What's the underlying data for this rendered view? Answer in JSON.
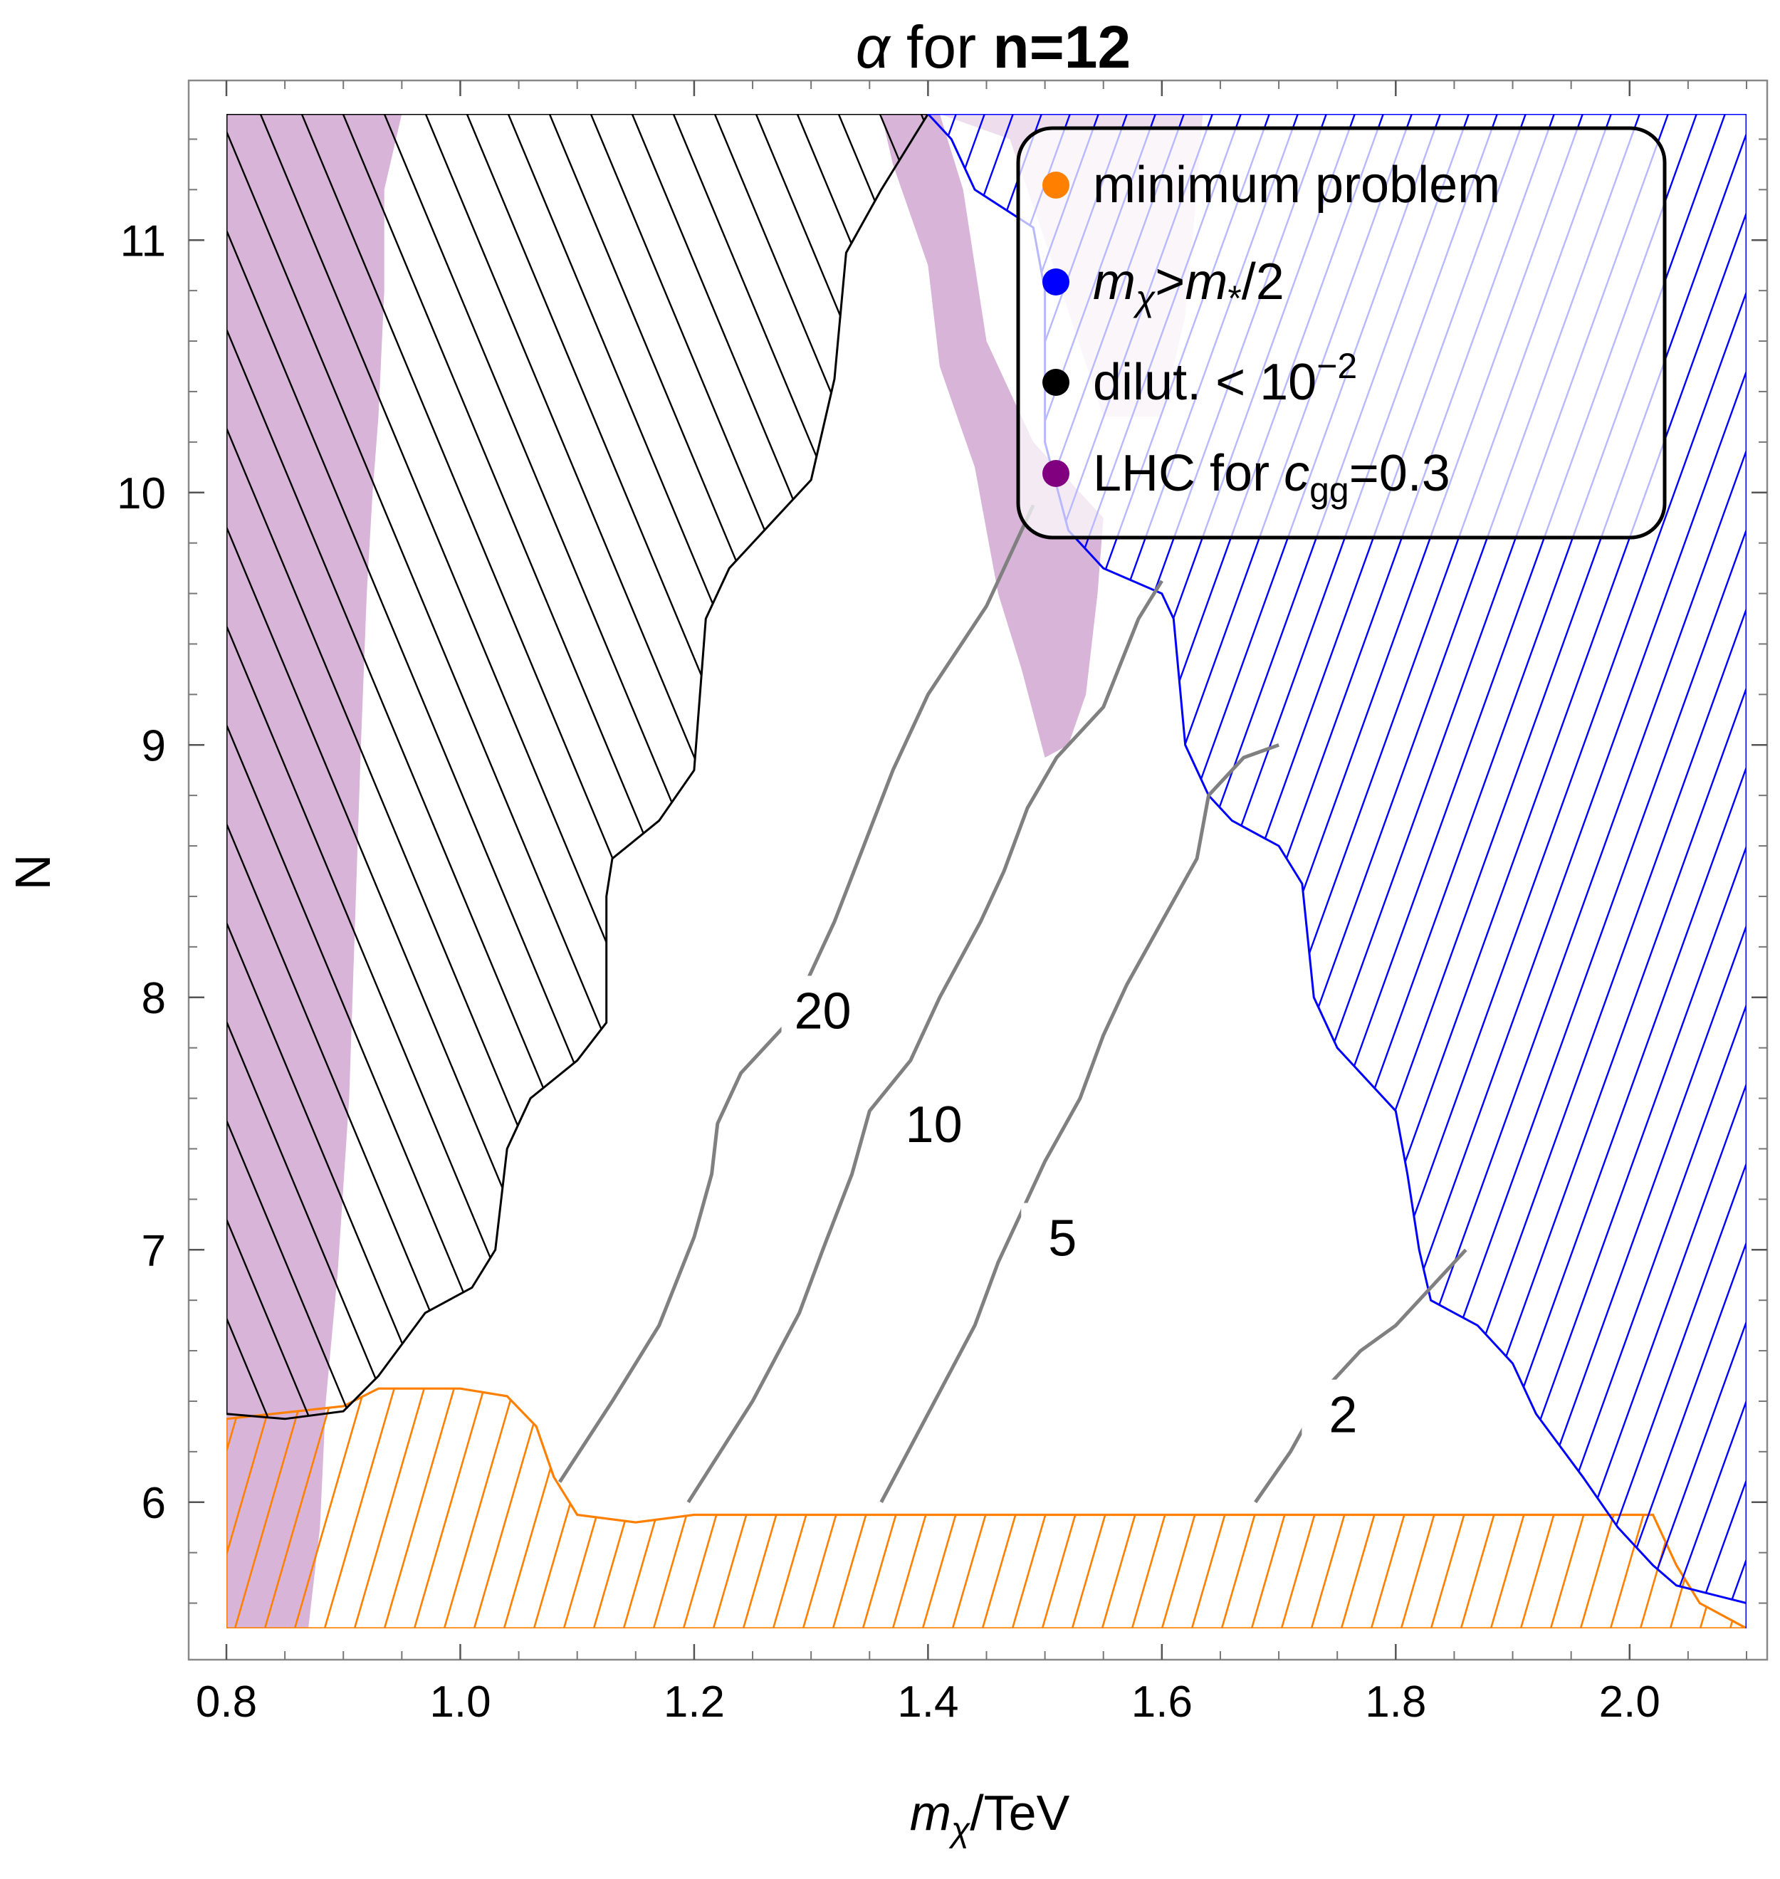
{
  "chart_data": {
    "type": "contour",
    "title": {
      "prefix": "α",
      "middle": " for ",
      "bold": "n=12"
    },
    "xlabel": {
      "var": "m",
      "sub": "χ",
      "unit": "/TeV"
    },
    "ylabel": "N",
    "xlim": [
      0.8,
      2.1
    ],
    "ylim": [
      5.5,
      11.5
    ],
    "x_ticks": [
      0.8,
      1.0,
      1.2,
      1.4,
      1.6,
      1.8,
      2.0
    ],
    "x_tick_labels": [
      "0.8",
      "1.0",
      "1.2",
      "1.4",
      "1.6",
      "1.8",
      "2.0"
    ],
    "y_ticks": [
      6,
      7,
      8,
      9,
      10,
      11
    ],
    "y_tick_labels": [
      "6",
      "7",
      "8",
      "9",
      "10",
      "11"
    ],
    "legend": {
      "position": "top-right",
      "items": [
        {
          "key": "minimum",
          "color": "#ff8000",
          "text": "minimum problem"
        },
        {
          "key": "mchi",
          "color": "#0000ff",
          "text_parts": [
            "m",
            "χ",
            ">",
            "m",
            "*",
            "/2"
          ]
        },
        {
          "key": "dilut",
          "color": "#000000",
          "text": "dilut. < 10",
          "sup": "−2"
        },
        {
          "key": "lhc",
          "color": "#800080",
          "text_pre": "LHC for ",
          "var": "c",
          "sub": "gg",
          "text_post": "=0.3"
        }
      ]
    },
    "regions": {
      "lhc": {
        "color": "#d8b4d8",
        "left_band": [
          [
            0.8,
            5.5
          ],
          [
            0.87,
            5.5
          ],
          [
            0.88,
            5.9
          ],
          [
            0.885,
            6.4
          ],
          [
            0.895,
            6.9
          ],
          [
            0.905,
            7.6
          ],
          [
            0.91,
            8.3
          ],
          [
            0.915,
            9.0
          ],
          [
            0.92,
            9.6
          ],
          [
            0.925,
            10.0
          ],
          [
            0.93,
            10.3
          ],
          [
            0.935,
            10.8
          ],
          [
            0.935,
            11.2
          ],
          [
            0.95,
            11.5
          ],
          [
            0.8,
            11.5
          ]
        ],
        "central_band": [
          [
            1.41,
            11.5
          ],
          [
            1.47,
            11.4
          ],
          [
            1.5,
            11.0
          ],
          [
            1.55,
            10.3
          ],
          [
            1.6,
            10.3
          ],
          [
            1.62,
            10.7
          ],
          [
            1.63,
            11.2
          ],
          [
            1.635,
            11.5
          ]
        ],
        "central_spike": [
          [
            1.36,
            11.5
          ],
          [
            1.41,
            11.5
          ],
          [
            1.43,
            11.2
          ],
          [
            1.45,
            10.6
          ],
          [
            1.49,
            10.2
          ],
          [
            1.55,
            9.9
          ],
          [
            1.545,
            9.6
          ],
          [
            1.535,
            9.2
          ],
          [
            1.52,
            9.0
          ],
          [
            1.5,
            8.95
          ],
          [
            1.48,
            9.3
          ],
          [
            1.46,
            9.6
          ],
          [
            1.44,
            10.1
          ],
          [
            1.41,
            10.5
          ],
          [
            1.4,
            10.9
          ],
          [
            1.37,
            11.3
          ]
        ]
      },
      "dilution": {
        "color": "#000000",
        "boundary": [
          [
            0.8,
            6.35
          ],
          [
            0.85,
            6.33
          ],
          [
            0.9,
            6.36
          ],
          [
            0.93,
            6.5
          ],
          [
            0.97,
            6.75
          ],
          [
            1.01,
            6.85
          ],
          [
            1.03,
            7.0
          ],
          [
            1.04,
            7.4
          ],
          [
            1.06,
            7.6
          ],
          [
            1.1,
            7.75
          ],
          [
            1.125,
            7.9
          ],
          [
            1.125,
            8.4
          ],
          [
            1.13,
            8.55
          ],
          [
            1.17,
            8.7
          ],
          [
            1.2,
            8.9
          ],
          [
            1.21,
            9.5
          ],
          [
            1.23,
            9.7
          ],
          [
            1.27,
            9.9
          ],
          [
            1.3,
            10.05
          ],
          [
            1.32,
            10.45
          ],
          [
            1.33,
            10.95
          ],
          [
            1.36,
            11.2
          ],
          [
            1.4,
            11.5
          ]
        ]
      },
      "mchi": {
        "color": "#0000ff",
        "boundary": [
          [
            1.4,
            11.5
          ],
          [
            1.42,
            11.4
          ],
          [
            1.44,
            11.2
          ],
          [
            1.49,
            11.05
          ],
          [
            1.5,
            10.8
          ],
          [
            1.5,
            10.2
          ],
          [
            1.52,
            9.85
          ],
          [
            1.55,
            9.7
          ],
          [
            1.6,
            9.6
          ],
          [
            1.61,
            9.5
          ],
          [
            1.62,
            9.0
          ],
          [
            1.64,
            8.8
          ],
          [
            1.66,
            8.7
          ],
          [
            1.7,
            8.6
          ],
          [
            1.72,
            8.45
          ],
          [
            1.73,
            8.0
          ],
          [
            1.75,
            7.8
          ],
          [
            1.8,
            7.55
          ],
          [
            1.81,
            7.3
          ],
          [
            1.82,
            7.0
          ],
          [
            1.83,
            6.8
          ],
          [
            1.87,
            6.7
          ],
          [
            1.9,
            6.55
          ],
          [
            1.92,
            6.35
          ],
          [
            1.96,
            6.1
          ],
          [
            1.99,
            5.9
          ],
          [
            2.02,
            5.75
          ],
          [
            2.04,
            5.67
          ],
          [
            2.1,
            5.6
          ]
        ]
      },
      "minimum": {
        "color": "#ff8000",
        "boundary": [
          [
            0.8,
            6.33
          ],
          [
            0.9,
            6.38
          ],
          [
            0.93,
            6.45
          ],
          [
            1.0,
            6.45
          ],
          [
            1.04,
            6.42
          ],
          [
            1.065,
            6.3
          ],
          [
            1.08,
            6.1
          ],
          [
            1.1,
            5.95
          ],
          [
            1.15,
            5.92
          ],
          [
            1.2,
            5.95
          ],
          [
            2.02,
            5.95
          ],
          [
            2.04,
            5.75
          ],
          [
            2.06,
            5.6
          ],
          [
            2.1,
            5.5
          ]
        ]
      }
    },
    "contours": [
      {
        "label": "20",
        "points": [
          [
            1.085,
            6.08
          ],
          [
            1.13,
            6.4
          ],
          [
            1.17,
            6.7
          ],
          [
            1.2,
            7.05
          ],
          [
            1.215,
            7.3
          ],
          [
            1.22,
            7.5
          ],
          [
            1.24,
            7.7
          ],
          [
            1.28,
            7.9
          ],
          [
            1.3,
            8.1
          ],
          [
            1.32,
            8.3
          ],
          [
            1.345,
            8.6
          ],
          [
            1.37,
            8.9
          ],
          [
            1.4,
            9.2
          ],
          [
            1.45,
            9.55
          ],
          [
            1.49,
            9.95
          ]
        ],
        "label_at": [
          1.31,
          7.95
        ]
      },
      {
        "label": "10",
        "points": [
          [
            1.195,
            6.0
          ],
          [
            1.25,
            6.4
          ],
          [
            1.29,
            6.75
          ],
          [
            1.31,
            7.0
          ],
          [
            1.335,
            7.3
          ],
          [
            1.35,
            7.55
          ],
          [
            1.385,
            7.75
          ],
          [
            1.41,
            8.0
          ],
          [
            1.445,
            8.3
          ],
          [
            1.465,
            8.5
          ],
          [
            1.485,
            8.75
          ],
          [
            1.51,
            8.95
          ],
          [
            1.55,
            9.15
          ],
          [
            1.58,
            9.5
          ],
          [
            1.6,
            9.65
          ]
        ],
        "label_at": [
          1.405,
          7.5
        ]
      },
      {
        "label": "5",
        "points": [
          [
            1.36,
            6.0
          ],
          [
            1.4,
            6.35
          ],
          [
            1.44,
            6.7
          ],
          [
            1.46,
            6.95
          ],
          [
            1.48,
            7.15
          ],
          [
            1.5,
            7.35
          ],
          [
            1.53,
            7.6
          ],
          [
            1.55,
            7.85
          ],
          [
            1.57,
            8.05
          ],
          [
            1.6,
            8.3
          ],
          [
            1.63,
            8.55
          ],
          [
            1.64,
            8.8
          ],
          [
            1.67,
            8.95
          ],
          [
            1.7,
            9.0
          ]
        ],
        "label_at": [
          1.515,
          7.05
        ]
      },
      {
        "label": "2",
        "points": [
          [
            1.68,
            6.0
          ],
          [
            1.71,
            6.2
          ],
          [
            1.74,
            6.45
          ],
          [
            1.77,
            6.6
          ],
          [
            1.8,
            6.7
          ],
          [
            1.84,
            6.9
          ],
          [
            1.86,
            7.0
          ]
        ],
        "label_at": [
          1.755,
          6.35
        ]
      }
    ]
  }
}
